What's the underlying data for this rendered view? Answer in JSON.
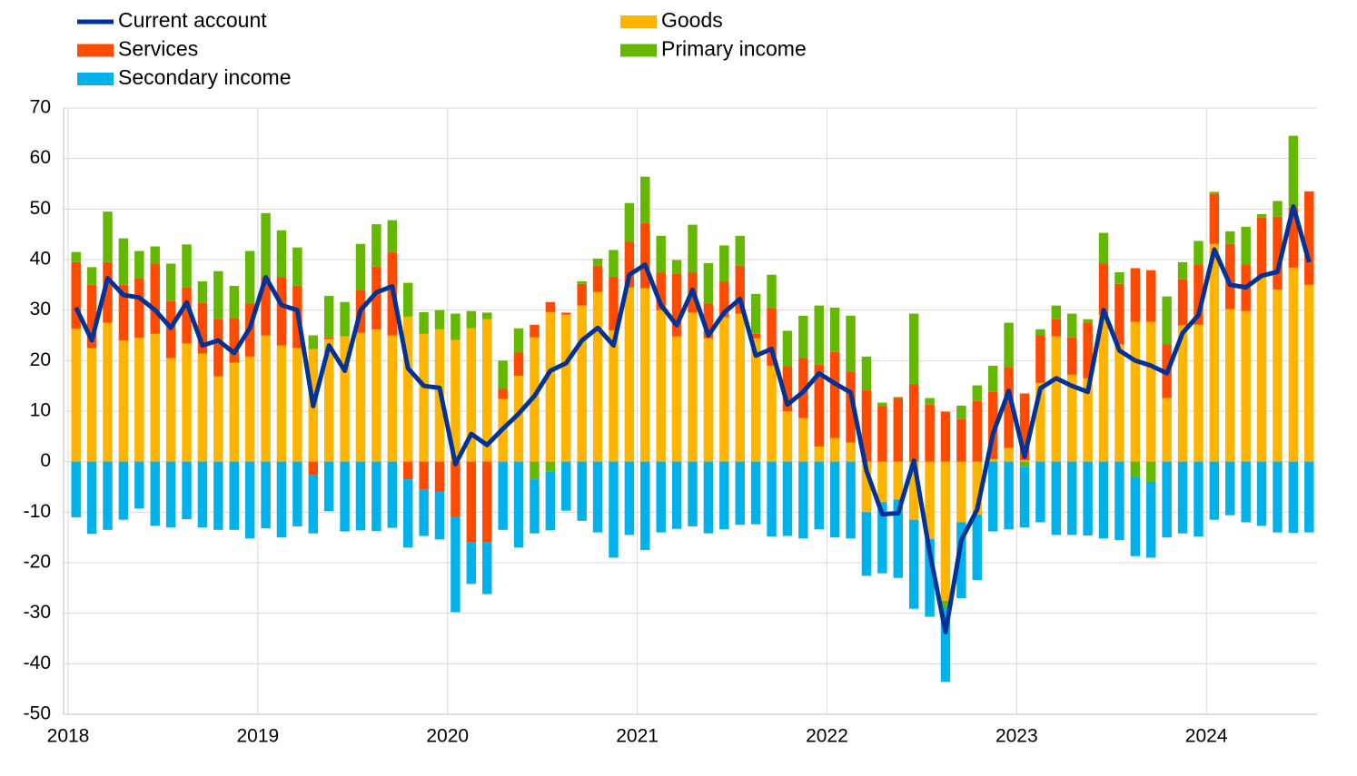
{
  "chart_data": {
    "type": "bar",
    "categories": [
      "2018",
      null,
      null,
      null,
      null,
      null,
      null,
      null,
      null,
      null,
      null,
      null,
      "2019",
      null,
      null,
      null,
      null,
      null,
      null,
      null,
      null,
      null,
      null,
      null,
      "2020",
      null,
      null,
      null,
      null,
      null,
      null,
      null,
      null,
      null,
      null,
      null,
      "2021",
      null,
      null,
      null,
      null,
      null,
      null,
      null,
      null,
      null,
      null,
      null,
      "2022",
      null,
      null,
      null,
      null,
      null,
      null,
      null,
      null,
      null,
      null,
      null,
      "2023",
      null,
      null,
      null,
      null,
      null,
      null,
      null,
      null,
      null,
      null,
      null,
      "2024",
      null,
      null,
      null,
      null,
      null,
      null
    ],
    "series": [
      {
        "name": "Current account",
        "type": "line",
        "color": "#003299",
        "values": [
          30.5,
          24,
          36.3,
          33,
          32.5,
          30,
          26.5,
          31.5,
          23,
          24,
          21.5,
          26.5,
          36.5,
          31,
          30,
          11,
          23,
          18,
          30,
          33.5,
          34.7,
          18.5,
          15,
          14.6,
          -0.5,
          5.5,
          3.3,
          6.5,
          9.5,
          13,
          18,
          19.5,
          24,
          26.5,
          23,
          37,
          39,
          31,
          27,
          34,
          25,
          29.5,
          32.2,
          21,
          22.3,
          11.3,
          13.8,
          17.5,
          15.5,
          13.7,
          -1.8,
          -10.4,
          -10.2,
          0.2,
          -18,
          -33.7,
          -15.5,
          -9.5,
          5.5,
          14,
          1,
          14.5,
          16.5,
          15,
          13.8,
          30,
          22,
          20,
          19,
          17.5,
          25.5,
          29,
          42,
          35,
          34.5,
          36.8,
          37.6,
          50.5,
          39.5
        ]
      },
      {
        "name": "Goods",
        "type": "bar",
        "color": "#ffb400",
        "values": [
          26.3,
          22.5,
          27.5,
          24,
          24.5,
          25.3,
          20.5,
          23.4,
          21.4,
          16.9,
          19.6,
          20.8,
          25,
          23,
          22.5,
          22.3,
          24.3,
          24.8,
          25.5,
          26.2,
          25,
          28.7,
          25.3,
          26.2,
          24.1,
          26.4,
          28.2,
          12.4,
          17,
          24.6,
          29.6,
          29.1,
          30.9,
          33.6,
          26,
          34.5,
          34.3,
          30,
          24.8,
          29.5,
          24.4,
          28.6,
          29.3,
          24.4,
          19,
          10,
          8.6,
          3,
          4.7,
          3.8,
          -10,
          -8,
          -7.5,
          -11.5,
          -15.3,
          -27.5,
          -12,
          -10.5,
          0.5,
          2.7,
          0.3,
          15.6,
          24.8,
          17.2,
          16.5,
          29.1,
          23.2,
          27.7,
          27.7,
          12.6,
          27,
          27.1,
          43.1,
          30.2,
          29.8,
          36.6,
          34.1,
          38.4,
          35
        ]
      },
      {
        "name": "Services",
        "type": "bar",
        "color": "#ff4b00",
        "values": [
          13.2,
          12.5,
          12,
          11,
          11.8,
          13.9,
          11.3,
          11.1,
          10,
          11.3,
          8.8,
          10.5,
          11.5,
          13.5,
          12.3,
          -2.7,
          0.3,
          0,
          8.5,
          12.4,
          16.5,
          -3.5,
          -5.5,
          -6,
          -11,
          -16,
          -16,
          2,
          4.6,
          2.5,
          2,
          0.4,
          4.3,
          5.2,
          10.6,
          9,
          12.9,
          7.4,
          12.4,
          7.9,
          6.9,
          7,
          9.5,
          0.9,
          11.4,
          8.9,
          11.9,
          16.2,
          17,
          14,
          14.2,
          11,
          12.6,
          15.4,
          11.3,
          9.9,
          8.4,
          12,
          13.3,
          16,
          13.2,
          9.4,
          3.4,
          7.4,
          11,
          10.1,
          12,
          10.6,
          10.2,
          10.6,
          9.1,
          11.9,
          9.9,
          12.9,
          9.2,
          11.7,
          14.4,
          11.9,
          18.5
        ]
      },
      {
        "name": "Primary income",
        "type": "bar",
        "color": "#65b800",
        "values": [
          2,
          3.5,
          10,
          9.2,
          5.4,
          3.4,
          7.4,
          8.5,
          4.3,
          9.5,
          6.4,
          10.4,
          12.7,
          9.3,
          7.6,
          2.7,
          8.2,
          6.8,
          9.1,
          8.4,
          6.3,
          6.7,
          4.3,
          3.8,
          5.2,
          3.4,
          1.3,
          5.6,
          4.8,
          -3.5,
          -2,
          0,
          0.5,
          1.4,
          5.3,
          7.7,
          9.2,
          7.3,
          2.7,
          9.5,
          8,
          7.2,
          5.9,
          7.9,
          6.6,
          7,
          8.4,
          11.7,
          8.8,
          11.1,
          6.6,
          0.7,
          0.2,
          13.9,
          1.3,
          -1.3,
          2.7,
          3.1,
          5.2,
          8.8,
          -1,
          1.2,
          2.7,
          4.7,
          0.7,
          6.1,
          2.3,
          -3,
          -4,
          9.5,
          3.4,
          4.7,
          0.4,
          2.5,
          7.5,
          0.7,
          3.1,
          14.2,
          0
        ]
      },
      {
        "name": "Secondary income",
        "type": "bar",
        "color": "#00b1ea",
        "values": [
          -11,
          -14.3,
          -13.5,
          -11.5,
          -9.3,
          -12.7,
          -13,
          -11.4,
          -13,
          -13.5,
          -13.5,
          -15.2,
          -13.2,
          -15,
          -12.8,
          -11.5,
          -9.8,
          -13.8,
          -13.6,
          -13.7,
          -13.1,
          -13.5,
          -9.2,
          -9.4,
          -18.8,
          -8.2,
          -10.2,
          -13.5,
          -17,
          -10.7,
          -11.6,
          -9.7,
          -11.7,
          -14,
          -19,
          -14.5,
          -17.5,
          -14,
          -13.3,
          -12.8,
          -14.2,
          -13.4,
          -12.5,
          -12.4,
          -14.8,
          -14.7,
          -15.2,
          -13.4,
          -15,
          -15.2,
          -12.6,
          -14.1,
          -15.5,
          -17.6,
          -15.4,
          -14.8,
          -15,
          -12.9,
          -13.8,
          -13.4,
          -12,
          -12,
          -14.5,
          -14.5,
          -14.6,
          -15.2,
          -15.5,
          -15.7,
          -15,
          -15,
          -14.2,
          -14.8,
          -11.5,
          -10.6,
          -12,
          -12.7,
          -14,
          -14.1,
          -14
        ]
      }
    ],
    "ylim": [
      -50,
      70
    ],
    "yticks": [
      -50,
      -40,
      -30,
      -20,
      -10,
      0,
      10,
      20,
      30,
      40,
      50,
      60,
      70
    ],
    "grid": true,
    "legend": "top"
  }
}
